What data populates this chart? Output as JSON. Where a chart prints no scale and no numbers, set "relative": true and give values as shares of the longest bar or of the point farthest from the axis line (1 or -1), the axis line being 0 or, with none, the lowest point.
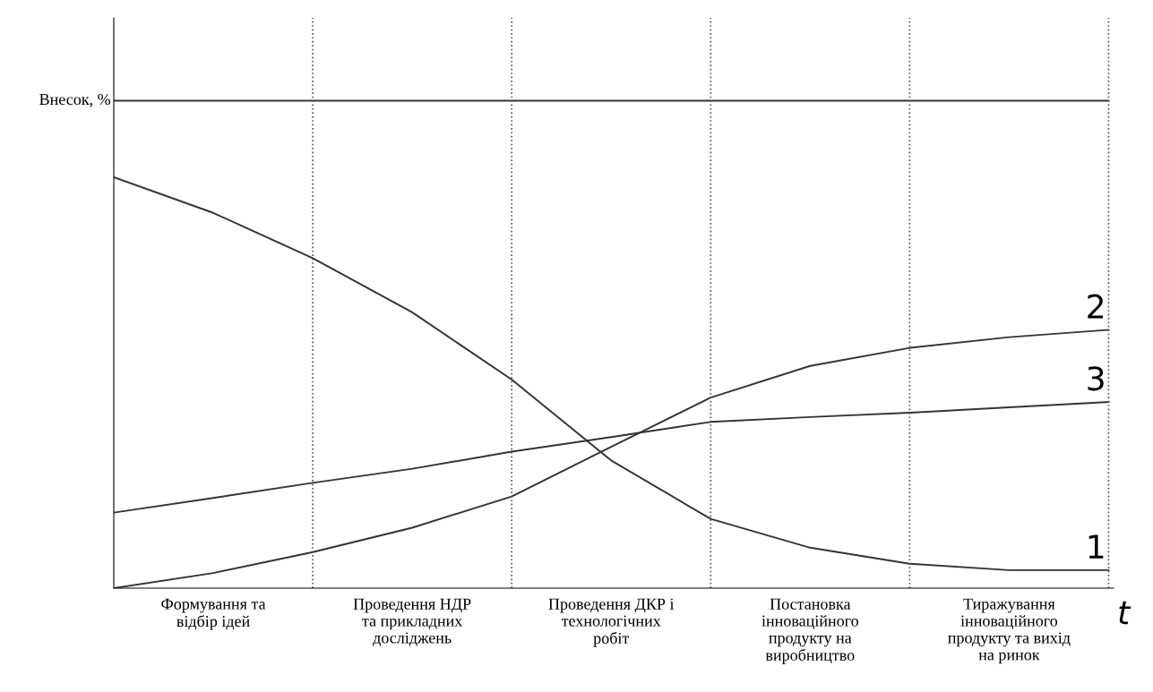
{
  "chart_data": {
    "type": "line",
    "relative": true,
    "xlabel": "t",
    "ylabel": "Внесок, %",
    "categories": [
      null,
      "Формування та\nвідбір ідей",
      null,
      "Проведення НДР\nта прикладних\nдосліджень",
      null,
      "Проведення ДКР і\nтехнологічних\nробіт",
      null,
      "Постановка\nінноваційного\nпродукту на\nвиробництво",
      null,
      "Тиражування\nінноваційного\nпродукту та вихід\nна ринок",
      null
    ],
    "series": [
      {
        "color": "#333333",
        "values": [
          1,
          1,
          1,
          1,
          1,
          1,
          1,
          1,
          1,
          1,
          1
        ]
      },
      {
        "name": "1",
        "color": "#333333",
        "values": [
          0.843,
          0.77,
          0.677,
          0.566,
          0.428,
          0.262,
          0.142,
          0.083,
          0.05,
          0.037,
          0.037
        ]
      },
      {
        "name": "2",
        "color": "#333333",
        "values": [
          0,
          0.031,
          0.074,
          0.124,
          0.188,
          0.29,
          0.391,
          0.456,
          0.493,
          0.515,
          0.53
        ]
      },
      {
        "name": "3",
        "color": "#333333",
        "values": [
          0.155,
          0.185,
          0.216,
          0.245,
          0.28,
          0.31,
          0.341,
          0.351,
          0.36,
          0.371,
          0.382
        ]
      }
    ],
    "grid": "x",
    "legend": false,
    "marker": "none",
    "line_style": "solid"
  }
}
